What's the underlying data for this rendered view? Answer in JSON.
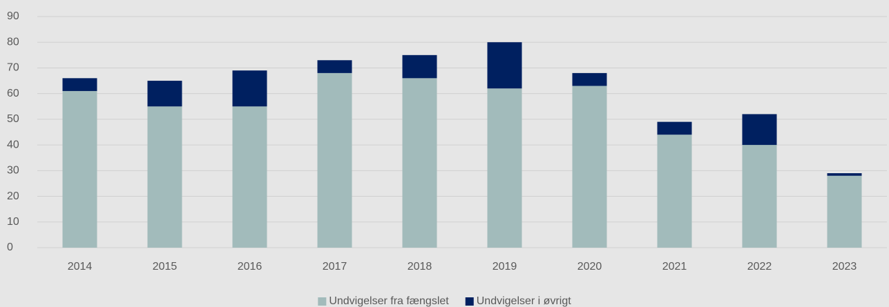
{
  "chart_data": {
    "type": "bar",
    "stacked": true,
    "categories": [
      "2014",
      "2015",
      "2016",
      "2017",
      "2018",
      "2019",
      "2020",
      "2021",
      "2022",
      "2023"
    ],
    "series": [
      {
        "name": "Undvigelser fra fængslet",
        "color": "#a2bbbb",
        "values": [
          61,
          55,
          55,
          68,
          66,
          62,
          63,
          44,
          40,
          28
        ]
      },
      {
        "name": "Undvigelser i øvrigt",
        "color": "#002060",
        "values": [
          5,
          10,
          14,
          5,
          9,
          18,
          5,
          5,
          12,
          1
        ]
      }
    ],
    "ylim": [
      0,
      90
    ],
    "yticks": [
      0,
      10,
      20,
      30,
      40,
      50,
      60,
      70,
      80,
      90
    ],
    "grid": true,
    "legend": "bottom"
  }
}
